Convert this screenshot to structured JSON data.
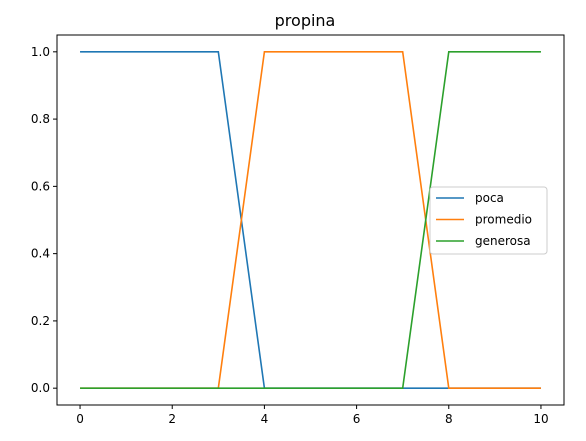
{
  "chart_data": {
    "type": "line",
    "title": "propina",
    "xlabel": "",
    "ylabel": "",
    "xlim": [
      -0.5,
      10.5
    ],
    "ylim": [
      -0.05,
      1.05
    ],
    "xticks": [
      0,
      2,
      4,
      6,
      8,
      10
    ],
    "yticks": [
      0.0,
      0.2,
      0.4,
      0.6,
      0.8,
      1.0
    ],
    "xtick_labels": [
      "0",
      "2",
      "4",
      "6",
      "8",
      "10"
    ],
    "ytick_labels": [
      "0.0",
      "0.2",
      "0.4",
      "0.6",
      "0.8",
      "1.0"
    ],
    "grid": false,
    "legend_position": "right",
    "series": [
      {
        "name": "poca",
        "color": "#1f77b4",
        "x": [
          0,
          3,
          4,
          10
        ],
        "y": [
          1,
          1,
          0,
          0
        ]
      },
      {
        "name": "promedio",
        "color": "#ff7f0e",
        "x": [
          0,
          3,
          4,
          7,
          8,
          10
        ],
        "y": [
          0,
          0,
          1,
          1,
          0,
          0
        ]
      },
      {
        "name": "generosa",
        "color": "#2ca02c",
        "x": [
          0,
          7,
          8,
          10
        ],
        "y": [
          0,
          0,
          1,
          1
        ]
      }
    ]
  }
}
